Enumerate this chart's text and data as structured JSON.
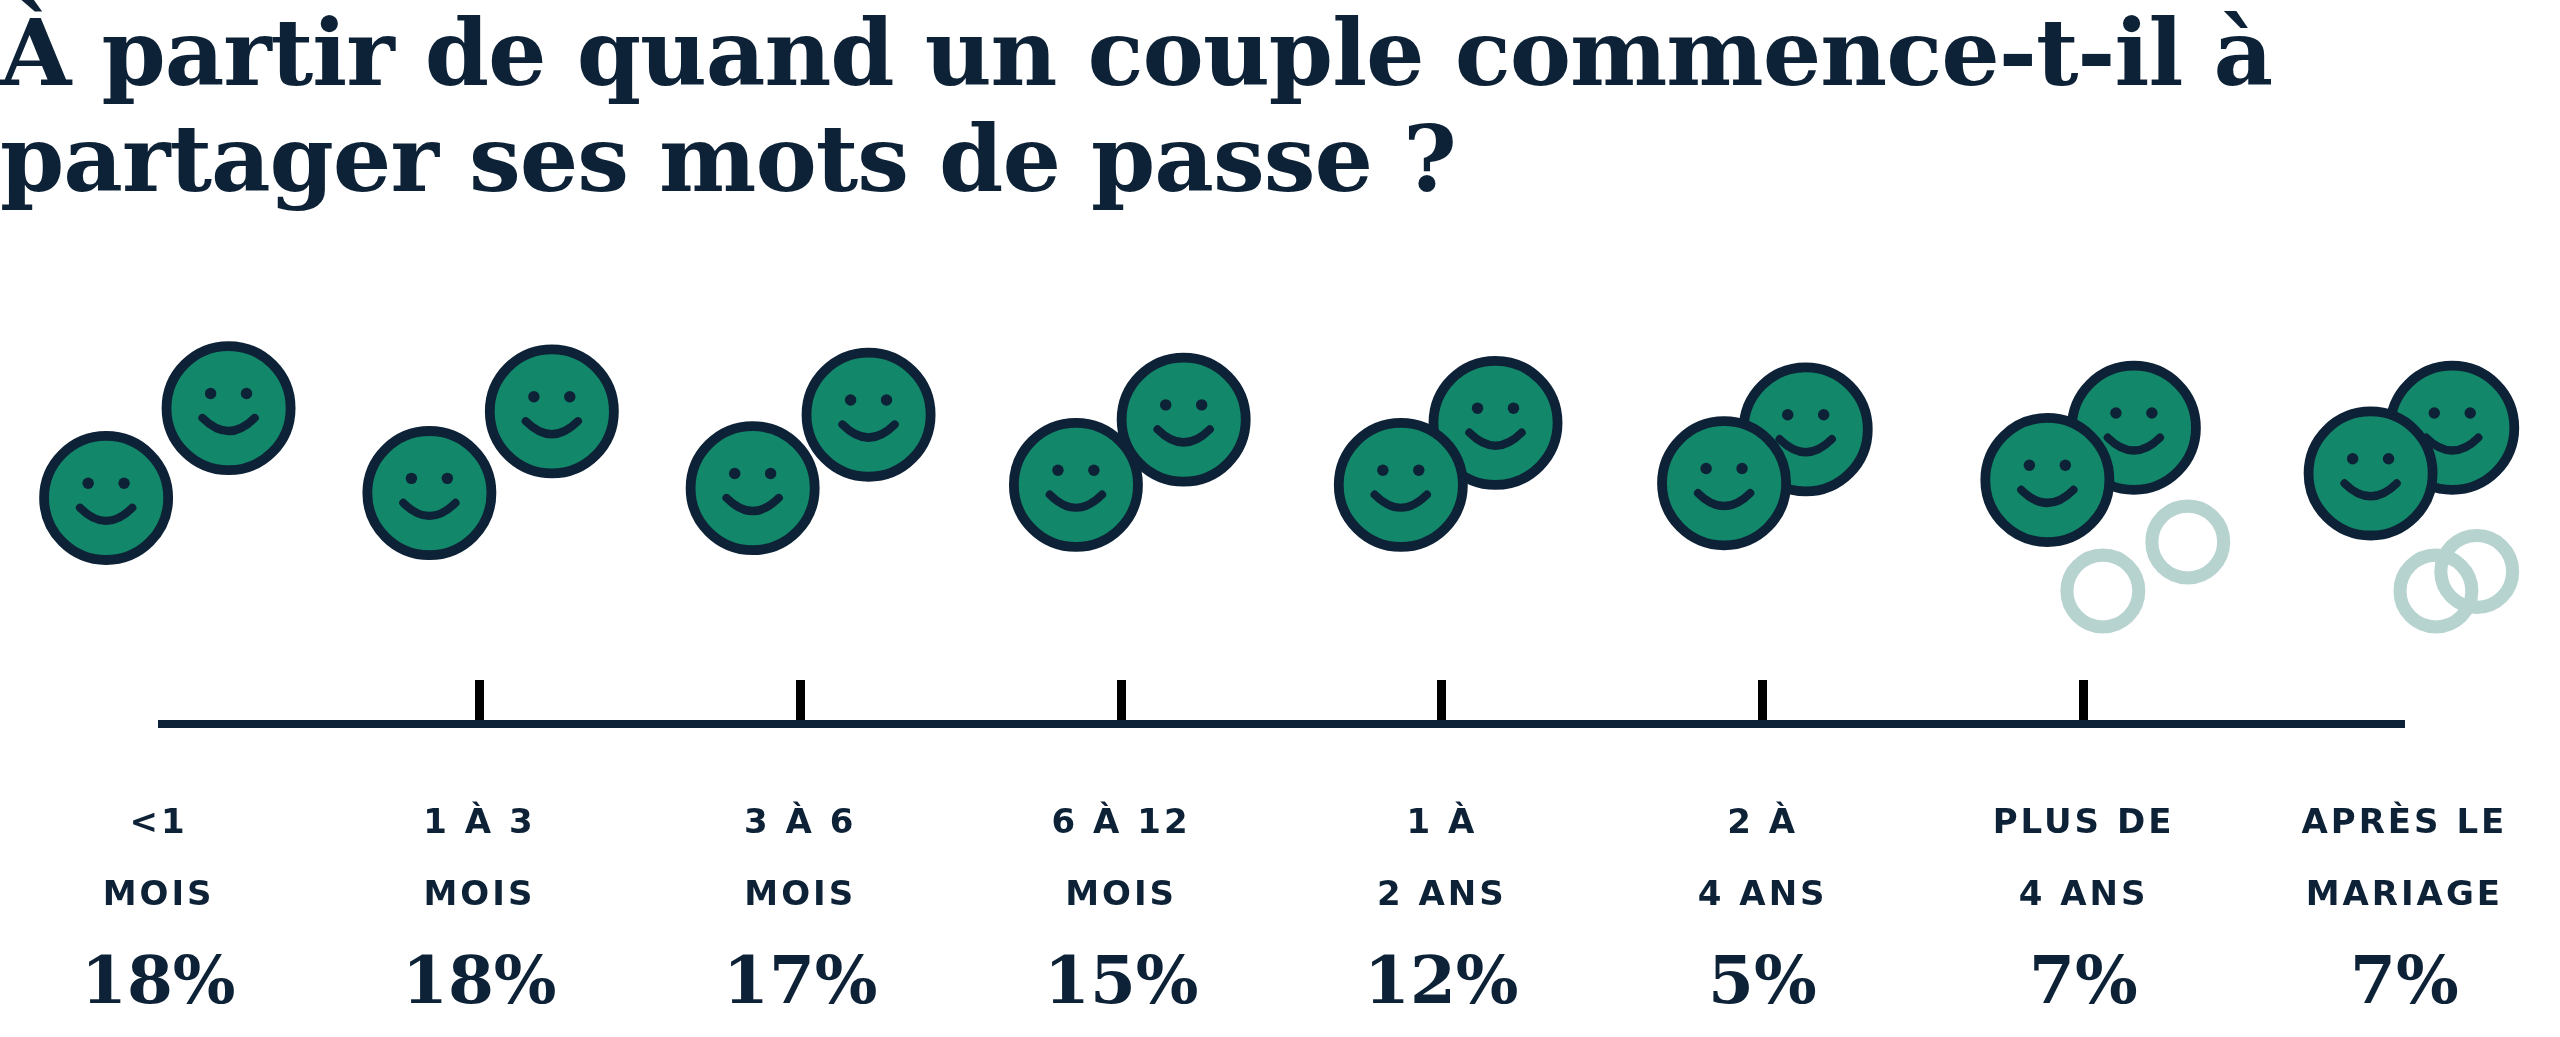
{
  "chart_data": {
    "type": "other",
    "title": "À partir de quand un couple commence-t-il à partager ses mots de passe ?",
    "categories": [
      "<1 MOIS",
      "1 À 3 MOIS",
      "3 À 6 MOIS",
      "6 À 12 MOIS",
      "1 À 2 ANS",
      "2 À 4 ANS",
      "PLUS DE 4 ANS",
      "APRÈS LE MARIAGE"
    ],
    "values": [
      18,
      18,
      17,
      15,
      12,
      5,
      7,
      7
    ],
    "value_labels": [
      "18%",
      "18%",
      "17%",
      "15%",
      "12%",
      "5%",
      "7%",
      "7%"
    ]
  }
}
